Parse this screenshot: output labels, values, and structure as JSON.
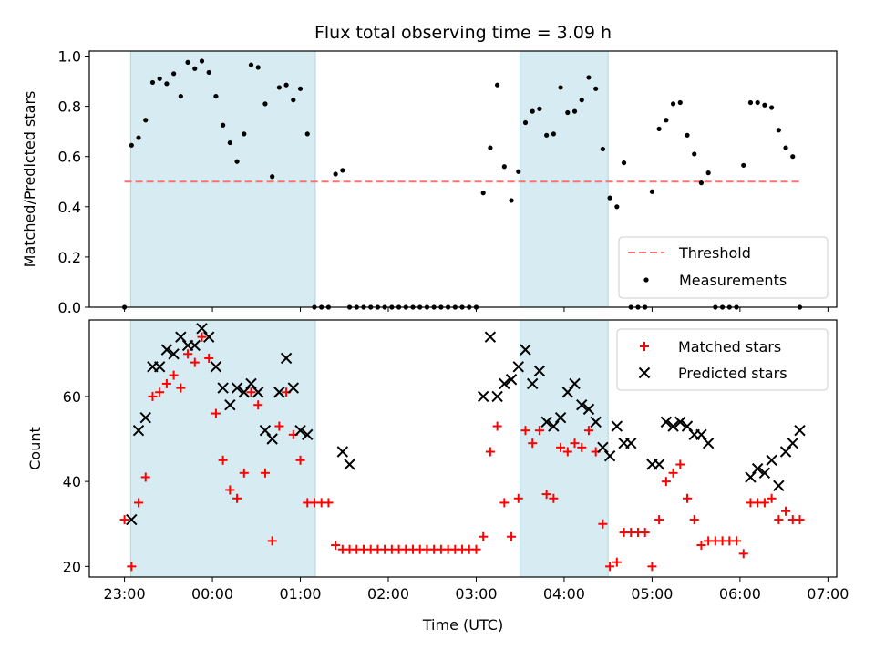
{
  "chart_data": [
    {
      "type": "scatter",
      "panel": "top",
      "title": "Flux total observing time = 3.09 h",
      "xlabel": "",
      "ylabel": "Matched/Predicted stars",
      "xlim": [
        -0.4,
        8.1
      ],
      "ylim": [
        0.0,
        1.02
      ],
      "yticks": [
        0.0,
        0.2,
        0.4,
        0.6,
        0.8,
        1.0
      ],
      "ytick_labels": [
        "0.0",
        "0.2",
        "0.4",
        "0.6",
        "0.8",
        "1.0"
      ],
      "x_unit": "hours since 23:00 UTC",
      "shaded_intervals": [
        [
          0.07,
          2.17
        ],
        [
          4.5,
          5.5
        ]
      ],
      "threshold": {
        "label": "Threshold",
        "value": 0.5,
        "x_range": [
          0,
          7.7
        ],
        "color": "#ff7070"
      },
      "legend": {
        "location": "lower-right",
        "entries": [
          "Threshold",
          "Measurements"
        ]
      },
      "series": [
        {
          "name": "Measurements",
          "color": "#000000",
          "x": [
            0.0,
            0.08,
            0.16,
            0.24,
            0.32,
            0.4,
            0.48,
            0.56,
            0.64,
            0.72,
            0.8,
            0.88,
            0.96,
            1.04,
            1.12,
            1.2,
            1.28,
            1.36,
            1.44,
            1.52,
            1.6,
            1.68,
            1.76,
            1.84,
            1.92,
            2.0,
            2.08,
            2.16,
            2.24,
            2.32,
            2.4,
            2.48,
            2.56,
            2.64,
            2.72,
            2.8,
            2.88,
            2.96,
            3.04,
            3.12,
            3.2,
            3.28,
            3.36,
            3.44,
            3.52,
            3.6,
            3.68,
            3.76,
            3.84,
            3.92,
            4.0,
            4.08,
            4.16,
            4.24,
            4.32,
            4.4,
            4.48,
            4.56,
            4.64,
            4.72,
            4.8,
            4.88,
            4.96,
            5.04,
            5.12,
            5.2,
            5.28,
            5.36,
            5.44,
            5.52,
            5.6,
            5.68,
            5.76,
            5.84,
            5.92,
            6.0,
            6.08,
            6.16,
            6.24,
            6.32,
            6.4,
            6.48,
            6.56,
            6.64,
            6.72,
            6.8,
            6.88,
            6.96,
            7.04,
            7.12,
            7.2,
            7.28,
            7.36,
            7.44,
            7.52,
            7.6,
            7.68
          ],
          "y": [
            0.0,
            0.645,
            0.675,
            0.745,
            0.895,
            0.91,
            0.89,
            0.93,
            0.84,
            0.975,
            0.95,
            0.98,
            0.935,
            0.84,
            0.725,
            0.655,
            0.58,
            0.69,
            0.965,
            0.955,
            0.81,
            0.52,
            0.875,
            0.885,
            0.825,
            0.87,
            0.69,
            0.0,
            0.0,
            0.0,
            0.53,
            0.545,
            0.0,
            0.0,
            0.0,
            0.0,
            0.0,
            0.0,
            0.0,
            0.0,
            0.0,
            0.0,
            0.0,
            0.0,
            0.0,
            0.0,
            0.0,
            0.0,
            0.0,
            0.0,
            0.0,
            0.455,
            0.635,
            0.885,
            0.56,
            0.425,
            0.54,
            0.735,
            0.78,
            0.79,
            0.685,
            0.69,
            0.875,
            0.775,
            0.78,
            0.825,
            0.915,
            0.87,
            0.63,
            0.435,
            0.4,
            0.575,
            0.0,
            0.0,
            0.0,
            0.46,
            0.71,
            0.745,
            0.81,
            0.815,
            0.685,
            0.61,
            0.495,
            0.535,
            0.0,
            0.0,
            0.0,
            0.0,
            0.565,
            0.815,
            0.815,
            0.805,
            0.795,
            0.705,
            0.635,
            0.6,
            0.0
          ]
        }
      ]
    },
    {
      "type": "scatter",
      "panel": "bottom",
      "title": "",
      "xlabel": "Time (UTC)",
      "ylabel": "Count",
      "xlim": [
        -0.4,
        8.1
      ],
      "ylim": [
        17.5,
        78
      ],
      "yticks": [
        20,
        40,
        60
      ],
      "ytick_labels": [
        "20",
        "40",
        "60"
      ],
      "xticks": [
        0,
        1,
        2,
        3,
        4,
        5,
        6,
        7,
        8
      ],
      "xtick_labels": [
        "23:00",
        "00:00",
        "01:00",
        "02:00",
        "03:00",
        "04:00",
        "05:00",
        "06:00",
        "07:00"
      ],
      "shaded_intervals": [
        [
          0.07,
          2.17
        ],
        [
          4.5,
          5.5
        ]
      ],
      "legend": {
        "location": "top-right",
        "entries": [
          "Matched stars",
          "Predicted stars"
        ]
      },
      "series": [
        {
          "name": "Matched stars",
          "marker": "plus",
          "color": "#ff0000",
          "x": [
            0.0,
            0.08,
            0.16,
            0.24,
            0.32,
            0.4,
            0.48,
            0.56,
            0.64,
            0.72,
            0.8,
            0.88,
            0.96,
            1.04,
            1.12,
            1.2,
            1.28,
            1.36,
            1.44,
            1.52,
            1.6,
            1.68,
            1.76,
            1.84,
            1.92,
            2.0,
            2.08,
            2.16,
            2.24,
            2.32,
            2.4,
            2.48,
            2.56,
            2.64,
            2.72,
            2.8,
            2.88,
            2.96,
            3.04,
            3.12,
            3.2,
            3.28,
            3.36,
            3.44,
            3.52,
            3.6,
            3.68,
            3.76,
            3.84,
            3.92,
            4.0,
            4.08,
            4.16,
            4.24,
            4.32,
            4.4,
            4.48,
            4.56,
            4.64,
            4.72,
            4.8,
            4.88,
            4.96,
            5.04,
            5.12,
            5.2,
            5.28,
            5.36,
            5.44,
            5.52,
            5.6,
            5.68,
            5.76,
            5.84,
            5.92,
            6.0,
            6.08,
            6.16,
            6.24,
            6.32,
            6.4,
            6.48,
            6.56,
            6.64,
            6.72,
            6.8,
            6.88,
            6.96,
            7.04,
            7.12,
            7.2,
            7.28,
            7.36,
            7.44,
            7.52,
            7.6,
            7.68
          ],
          "y": [
            31,
            20,
            35,
            41,
            60,
            61,
            63,
            65,
            62,
            70,
            68,
            74,
            69,
            56,
            45,
            38,
            36,
            42,
            61,
            58,
            42,
            26,
            53,
            61,
            51,
            45,
            35,
            35,
            35,
            35,
            25,
            24,
            24,
            24,
            24,
            24,
            24,
            24,
            24,
            24,
            24,
            24,
            24,
            24,
            24,
            24,
            24,
            24,
            24,
            24,
            24,
            27,
            47,
            53,
            35,
            27,
            36,
            52,
            49,
            52,
            37,
            36,
            48,
            47,
            49,
            48,
            52,
            47,
            30,
            20,
            21,
            28,
            28,
            28,
            28,
            20,
            31,
            40,
            42,
            44,
            36,
            31,
            25,
            26,
            26,
            26,
            26,
            26,
            23,
            35,
            35,
            35,
            36,
            31,
            33,
            31,
            31
          ]
        },
        {
          "name": "Predicted stars",
          "marker": "x",
          "color": "#000000",
          "x": [
            0.08,
            0.16,
            0.24,
            0.32,
            0.4,
            0.48,
            0.56,
            0.64,
            0.72,
            0.8,
            0.88,
            0.96,
            1.04,
            1.12,
            1.2,
            1.28,
            1.36,
            1.44,
            1.52,
            1.6,
            1.68,
            1.76,
            1.84,
            1.92,
            2.0,
            2.08,
            2.48,
            2.56,
            4.08,
            4.16,
            4.24,
            4.32,
            4.4,
            4.48,
            4.56,
            4.64,
            4.72,
            4.8,
            4.88,
            4.96,
            5.04,
            5.12,
            5.2,
            5.28,
            5.36,
            5.44,
            5.52,
            5.6,
            5.68,
            5.76,
            6.0,
            6.08,
            6.16,
            6.24,
            6.32,
            6.4,
            6.48,
            6.56,
            6.64,
            7.12,
            7.2,
            7.28,
            7.36,
            7.44,
            7.52,
            7.6,
            7.68
          ],
          "y": [
            31,
            52,
            55,
            67,
            67,
            71,
            70,
            74,
            72,
            72,
            76,
            74,
            67,
            62,
            58,
            62,
            61,
            63,
            61,
            52,
            50,
            61,
            69,
            62,
            52,
            51,
            47,
            44,
            60,
            74,
            60,
            63,
            64,
            67,
            71,
            63,
            66,
            54,
            53,
            55,
            61,
            63,
            58,
            57,
            54,
            48,
            46,
            53,
            49,
            49,
            44,
            44,
            54,
            53,
            54,
            53,
            51,
            51,
            49,
            41,
            43,
            42,
            45,
            39,
            47,
            49,
            52
          ]
        }
      ]
    }
  ]
}
